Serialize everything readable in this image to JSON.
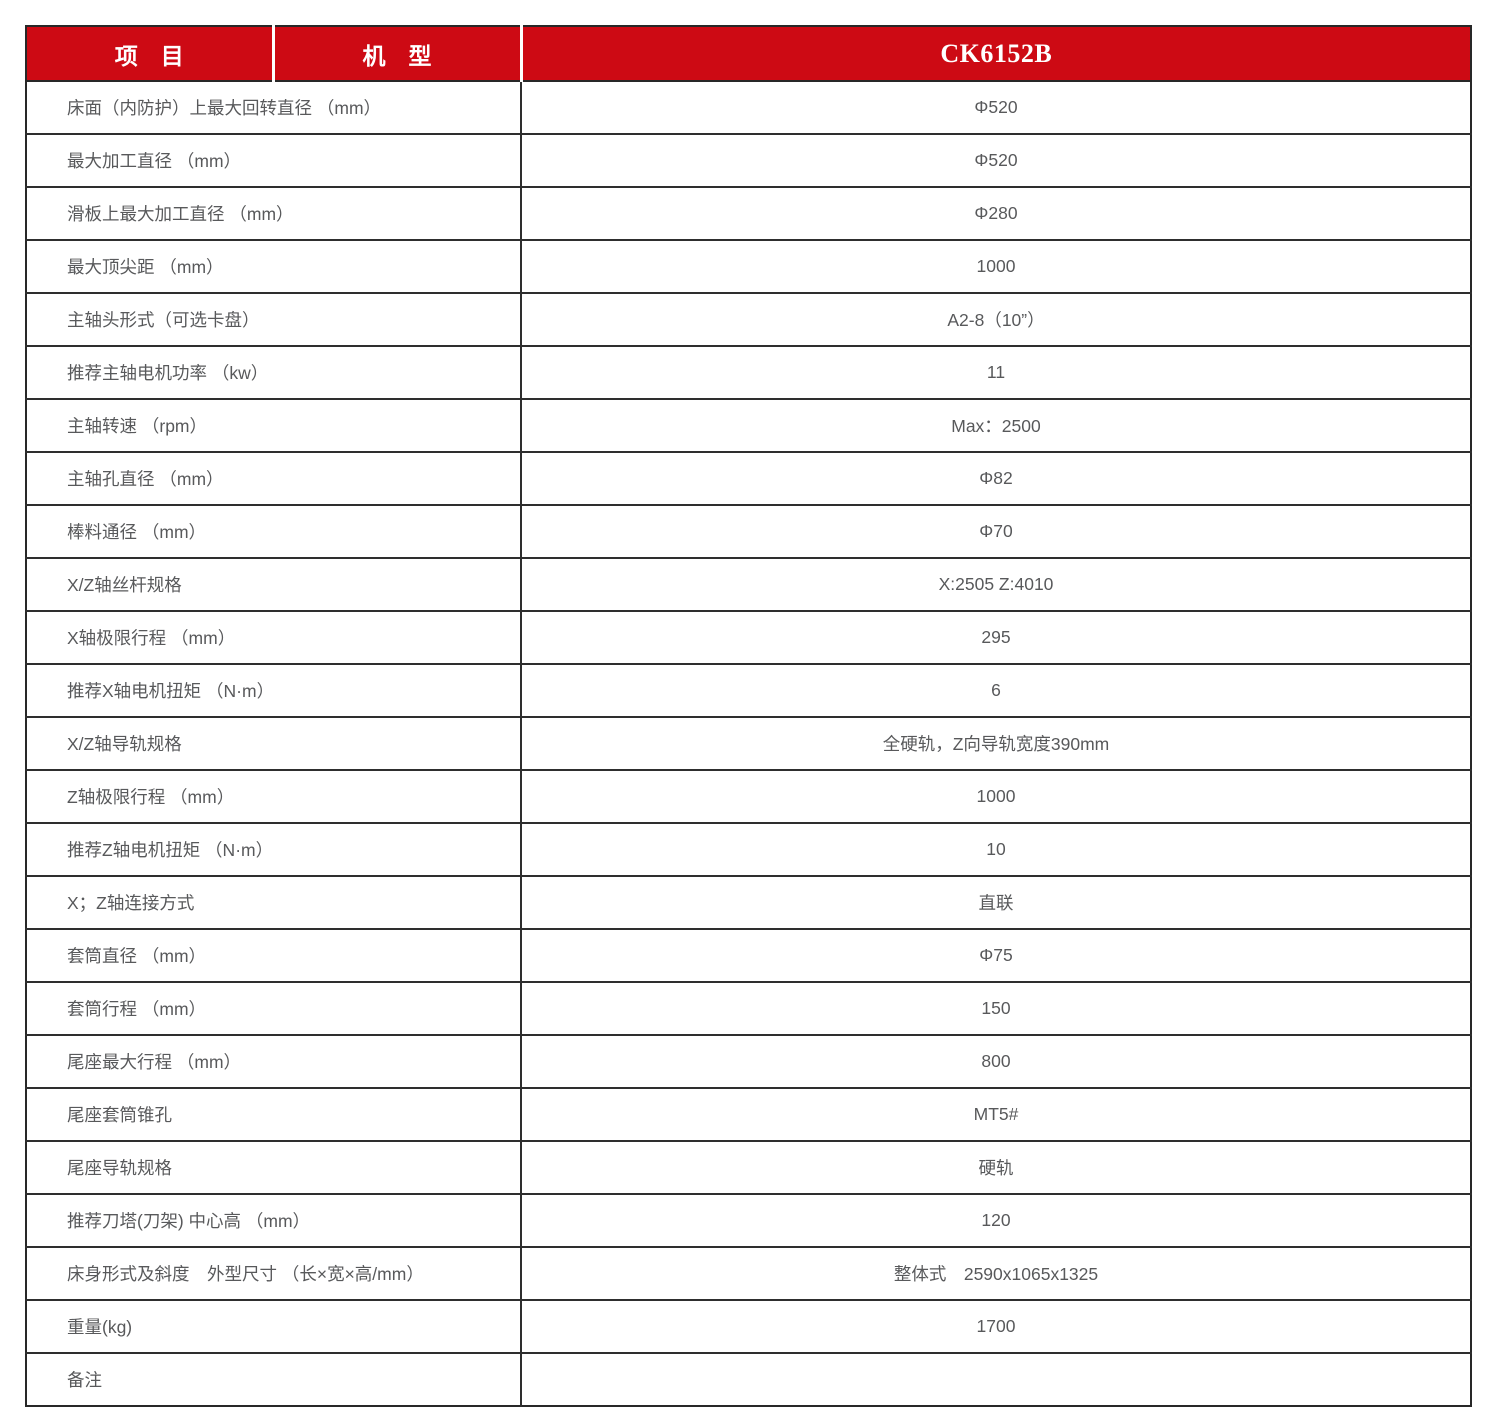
{
  "table": {
    "header": {
      "item_label": "项　目",
      "model_label": "机　型",
      "model_name": "CK6152B"
    },
    "rows": [
      {
        "label": "床面（内防护）上最大回转直径 （mm）",
        "value": "Φ520"
      },
      {
        "label": "最大加工直径 （mm）",
        "value": "Φ520"
      },
      {
        "label": "滑板上最大加工直径 （mm）",
        "value": "Φ280"
      },
      {
        "label": "最大顶尖距 （mm）",
        "value": "1000"
      },
      {
        "label": "主轴头形式（可选卡盘）",
        "value": "A2-8（10”）"
      },
      {
        "label": "推荐主轴电机功率 （kw）",
        "value": "11"
      },
      {
        "label": "主轴转速 （rpm）",
        "value": "Max：2500"
      },
      {
        "label": "主轴孔直径 （mm）",
        "value": "Φ82"
      },
      {
        "label": "棒料通径 （mm）",
        "value": "Φ70"
      },
      {
        "label": "X/Z轴丝杆规格",
        "value": "X:2505 Z:4010"
      },
      {
        "label": "X轴极限行程 （mm）",
        "value": "295"
      },
      {
        "label": "推荐X轴电机扭矩 （N·m）",
        "value": "6"
      },
      {
        "label": "X/Z轴导轨规格",
        "value": "全硬轨，Z向导轨宽度390mm"
      },
      {
        "label": "Z轴极限行程 （mm）",
        "value": "1000"
      },
      {
        "label": "推荐Z轴电机扭矩 （N·m）",
        "value": "10"
      },
      {
        "label": "X；Z轴连接方式",
        "value": "直联"
      },
      {
        "label": "套筒直径 （mm）",
        "value": "Φ75"
      },
      {
        "label": "套筒行程 （mm）",
        "value": "150"
      },
      {
        "label": "尾座最大行程 （mm）",
        "value": "800"
      },
      {
        "label": "尾座套筒锥孔",
        "value": "MT5#"
      },
      {
        "label": "尾座导轨规格",
        "value": "硬轨"
      },
      {
        "label": "推荐刀塔(刀架) 中心高 （mm）",
        "value": "120"
      },
      {
        "label": "床身形式及斜度　外型尺寸 （长×宽×高/mm）",
        "value": "整体式　2590x1065x1325"
      },
      {
        "label": "重量(kg)",
        "value": "1700"
      },
      {
        "label": "备注",
        "value": ""
      }
    ],
    "colors": {
      "header_bg": "#cd0a14",
      "header_text": "#ffffff",
      "body_text": "#58595b",
      "border": "#2e2e2e"
    }
  }
}
